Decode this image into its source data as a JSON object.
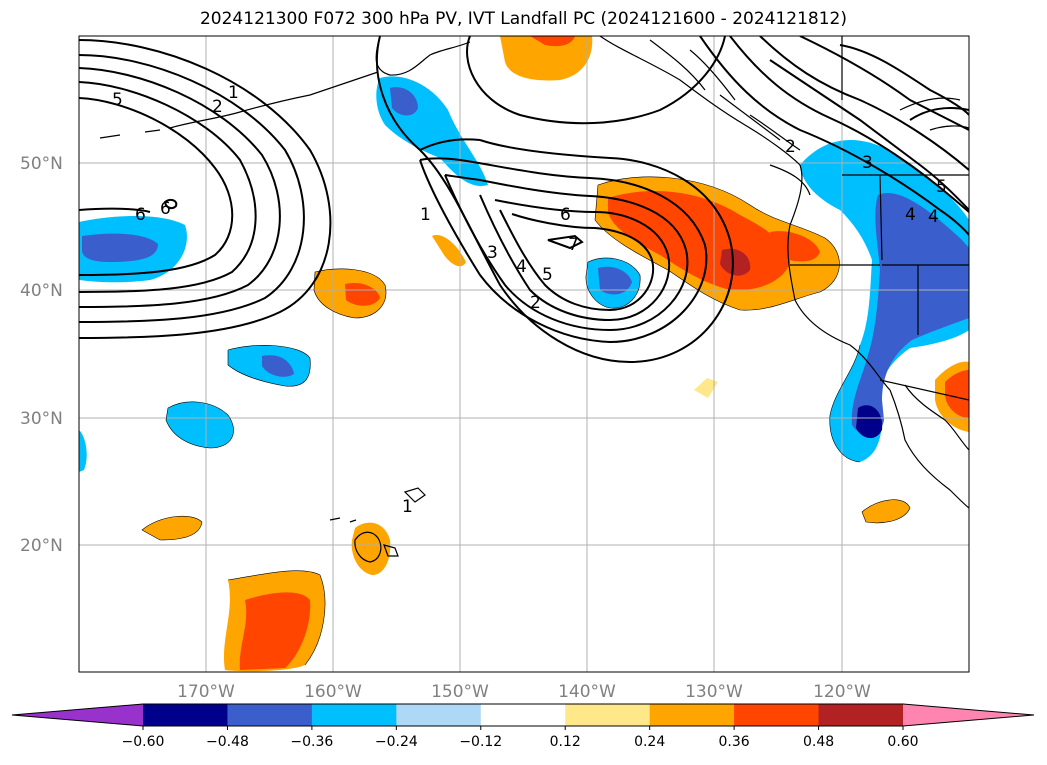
{
  "title": "2024121300 F072 300 hPa PV, IVT Landfall PC (2024121600 - 2024121812)",
  "lat_labels": [
    "50°N",
    "40°N",
    "30°N",
    "20°N"
  ],
  "lon_labels": [
    "170°W",
    "160°W",
    "150°W",
    "140°W",
    "130°W",
    "120°W"
  ],
  "contour_labels": [
    "1",
    "2",
    "5",
    "6",
    "6",
    "6",
    "1",
    "3",
    "4",
    "5",
    "2",
    "7",
    "2",
    "3",
    "4",
    "4",
    "5",
    "1"
  ],
  "colorbar": {
    "ticks": [
      "−0.60",
      "−0.48",
      "−0.36",
      "−0.24",
      "−0.12",
      "0.12",
      "0.24",
      "0.36",
      "0.48",
      "0.60"
    ],
    "colors": [
      "#9932cc",
      "#00008b",
      "#3a5fcd",
      "#00bfff",
      "#add8f6",
      "#ffffff",
      "#ffe88a",
      "#ffa500",
      "#ff4500",
      "#b22222",
      "#ff85b0"
    ]
  }
}
